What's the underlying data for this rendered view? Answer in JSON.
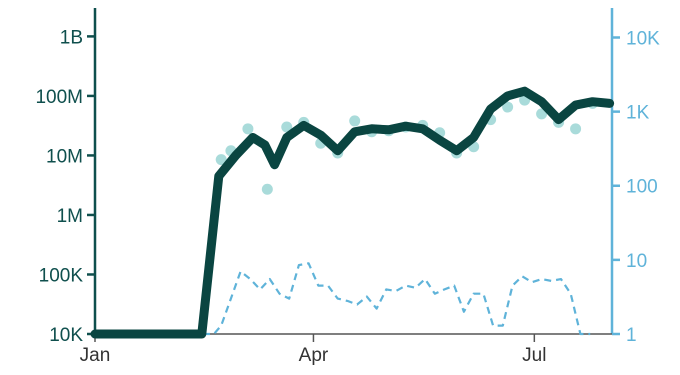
{
  "chart_data": {
    "type": "line",
    "title": "",
    "xlabel": "",
    "ylabel_left": "",
    "ylabel_right": "",
    "x_ticks": [
      {
        "label": "Jan",
        "x": 0
      },
      {
        "label": "Apr",
        "x": 90
      },
      {
        "label": "Jul",
        "x": 181
      }
    ],
    "xlim": [
      0,
      213
    ],
    "y_left": {
      "scale": "log",
      "ylim": [
        10000,
        3000000000
      ],
      "ticks": [
        {
          "label": "10K",
          "value": 10000
        },
        {
          "label": "100K",
          "value": 100000
        },
        {
          "label": "1M",
          "value": 1000000
        },
        {
          "label": "10M",
          "value": 10000000
        },
        {
          "label": "100M",
          "value": 100000000
        },
        {
          "label": "1B",
          "value": 1000000000
        }
      ],
      "color": "#0f4f4d"
    },
    "y_right": {
      "scale": "log",
      "ylim": [
        1,
        25000
      ],
      "ticks": [
        {
          "label": "1",
          "value": 1
        },
        {
          "label": "10",
          "value": 10
        },
        {
          "label": "100",
          "value": 100
        },
        {
          "label": "1K",
          "value": 1000
        },
        {
          "label": "10K",
          "value": 10000
        }
      ],
      "color": "#5fb3d9"
    },
    "series": [
      {
        "axis": "left",
        "style": "thick-solid",
        "color": "#0a4541",
        "x": [
          0,
          44,
          51,
          58,
          65,
          70,
          74,
          79,
          86,
          93,
          100,
          107,
          114,
          121,
          128,
          135,
          142,
          149,
          156,
          163,
          170,
          177,
          184,
          191,
          198,
          205,
          212
        ],
        "y": [
          10000,
          10000,
          4500000,
          10000000,
          20000000,
          15000000,
          7000000,
          20000000,
          32000000,
          22000000,
          12000000,
          25000000,
          28000000,
          27000000,
          31000000,
          28000000,
          18000000,
          12000000,
          20000000,
          60000000,
          100000000,
          120000000,
          80000000,
          40000000,
          70000000,
          80000000,
          75000000
        ]
      },
      {
        "axis": "left",
        "style": "points",
        "color": "#8ccfce",
        "x": [
          52,
          56,
          63,
          71,
          79,
          86,
          93,
          100,
          107,
          114,
          121,
          128,
          135,
          142,
          149,
          156,
          163,
          170,
          177,
          184,
          191,
          198,
          205
        ],
        "y": [
          8500000,
          12000000,
          28000000,
          2700000,
          30000000,
          36000000,
          16000000,
          11000000,
          38000000,
          25000000,
          26000000,
          30000000,
          32000000,
          24000000,
          11000000,
          14000000,
          40000000,
          65000000,
          85000000,
          50000000,
          36000000,
          28000000,
          75000000
        ]
      },
      {
        "axis": "right",
        "style": "dashed",
        "color": "#5fb3d9",
        "x": [
          0,
          44,
          49,
          52,
          56,
          60,
          64,
          68,
          72,
          76,
          80,
          84,
          88,
          92,
          96,
          100,
          104,
          108,
          112,
          116,
          120,
          124,
          128,
          132,
          136,
          140,
          144,
          148,
          152,
          156,
          160,
          164,
          168,
          172,
          176,
          180,
          184,
          188,
          192,
          196,
          200,
          204
        ],
        "y": [
          1,
          1,
          1,
          1.3,
          3,
          7,
          5.5,
          4,
          5.5,
          3.5,
          3,
          8.5,
          9,
          4.5,
          4.5,
          3,
          2.8,
          2.5,
          3.2,
          2.2,
          4,
          3.8,
          4.5,
          4.2,
          5.5,
          3.5,
          4,
          4.5,
          2,
          3.5,
          3.5,
          1.3,
          1.3,
          4.5,
          6,
          5,
          5.5,
          5.2,
          5.5,
          3.5,
          1,
          1
        ]
      }
    ],
    "grid": false,
    "legend": "none"
  }
}
